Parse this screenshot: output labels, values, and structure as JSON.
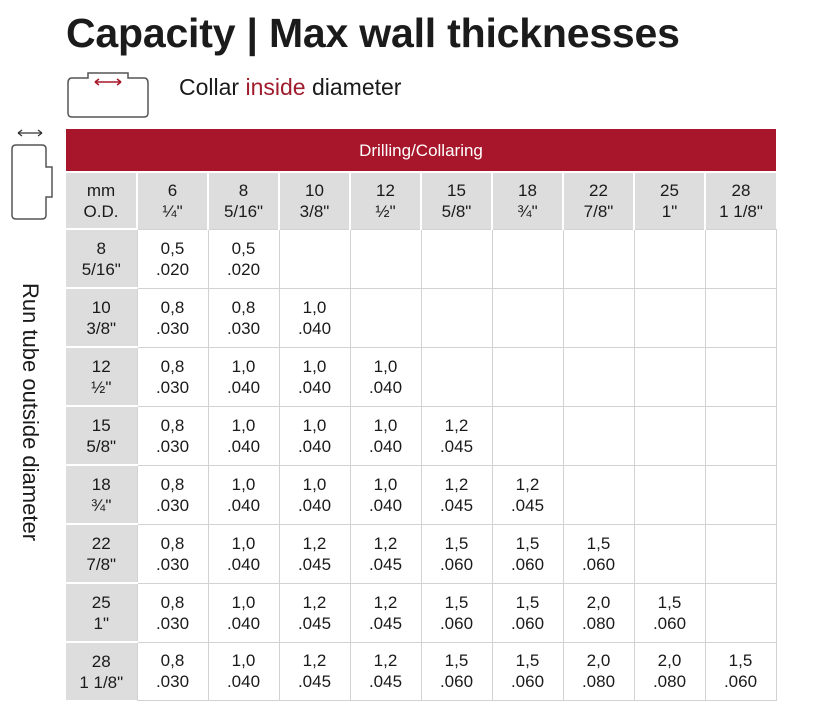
{
  "title": "Capacity | Max wall thicknesses",
  "legend": {
    "prefix": "Collar ",
    "highlight": "inside",
    "suffix": " diameter"
  },
  "side_label": "Run tube outside diameter",
  "colors": {
    "accent": "#a7162a",
    "header_gray": "#dddddd",
    "grid_line": "#d2d2d2"
  },
  "icons": {
    "collar": "collar-inside-diameter-icon",
    "run_tube": "run-tube-outside-diameter-icon"
  },
  "table": {
    "band": "Drilling/Collaring",
    "corner": {
      "line1": "mm",
      "line2": "O.D."
    },
    "columns": [
      {
        "mm": "6",
        "inch": "¼\""
      },
      {
        "mm": "8",
        "inch": "5/16\""
      },
      {
        "mm": "10",
        "inch": "3/8\""
      },
      {
        "mm": "12",
        "inch": "½\""
      },
      {
        "mm": "15",
        "inch": "5/8\""
      },
      {
        "mm": "18",
        "inch": "¾\""
      },
      {
        "mm": "22",
        "inch": "7/8\""
      },
      {
        "mm": "25",
        "inch": "1\""
      },
      {
        "mm": "28",
        "inch": "1 1/8\""
      }
    ],
    "rows": [
      {
        "mm": "8",
        "inch": "5/16\"",
        "cells": [
          [
            "0,5",
            ".020"
          ],
          [
            "0,5",
            ".020"
          ],
          null,
          null,
          null,
          null,
          null,
          null,
          null
        ]
      },
      {
        "mm": "10",
        "inch": "3/8\"",
        "cells": [
          [
            "0,8",
            ".030"
          ],
          [
            "0,8",
            ".030"
          ],
          [
            "1,0",
            ".040"
          ],
          null,
          null,
          null,
          null,
          null,
          null
        ]
      },
      {
        "mm": "12",
        "inch": "½\"",
        "cells": [
          [
            "0,8",
            ".030"
          ],
          [
            "1,0",
            ".040"
          ],
          [
            "1,0",
            ".040"
          ],
          [
            "1,0",
            ".040"
          ],
          null,
          null,
          null,
          null,
          null
        ]
      },
      {
        "mm": "15",
        "inch": "5/8\"",
        "cells": [
          [
            "0,8",
            ".030"
          ],
          [
            "1,0",
            ".040"
          ],
          [
            "1,0",
            ".040"
          ],
          [
            "1,0",
            ".040"
          ],
          [
            "1,2",
            ".045"
          ],
          null,
          null,
          null,
          null
        ]
      },
      {
        "mm": "18",
        "inch": "¾\"",
        "cells": [
          [
            "0,8",
            ".030"
          ],
          [
            "1,0",
            ".040"
          ],
          [
            "1,0",
            ".040"
          ],
          [
            "1,0",
            ".040"
          ],
          [
            "1,2",
            ".045"
          ],
          [
            "1,2",
            ".045"
          ],
          null,
          null,
          null
        ]
      },
      {
        "mm": "22",
        "inch": "7/8\"",
        "cells": [
          [
            "0,8",
            ".030"
          ],
          [
            "1,0",
            ".040"
          ],
          [
            "1,2",
            ".045"
          ],
          [
            "1,2",
            ".045"
          ],
          [
            "1,5",
            ".060"
          ],
          [
            "1,5",
            ".060"
          ],
          [
            "1,5",
            ".060"
          ],
          null,
          null
        ]
      },
      {
        "mm": "25",
        "inch": "1\"",
        "cells": [
          [
            "0,8",
            ".030"
          ],
          [
            "1,0",
            ".040"
          ],
          [
            "1,2",
            ".045"
          ],
          [
            "1,2",
            ".045"
          ],
          [
            "1,5",
            ".060"
          ],
          [
            "1,5",
            ".060"
          ],
          [
            "2,0",
            ".080"
          ],
          [
            "1,5",
            ".060"
          ],
          null
        ]
      },
      {
        "mm": "28",
        "inch": "1 1/8\"",
        "cells": [
          [
            "0,8",
            ".030"
          ],
          [
            "1,0",
            ".040"
          ],
          [
            "1,2",
            ".045"
          ],
          [
            "1,2",
            ".045"
          ],
          [
            "1,5",
            ".060"
          ],
          [
            "1,5",
            ".060"
          ],
          [
            "2,0",
            ".080"
          ],
          [
            "2,0",
            ".080"
          ],
          [
            "1,5",
            ".060"
          ]
        ]
      }
    ]
  }
}
